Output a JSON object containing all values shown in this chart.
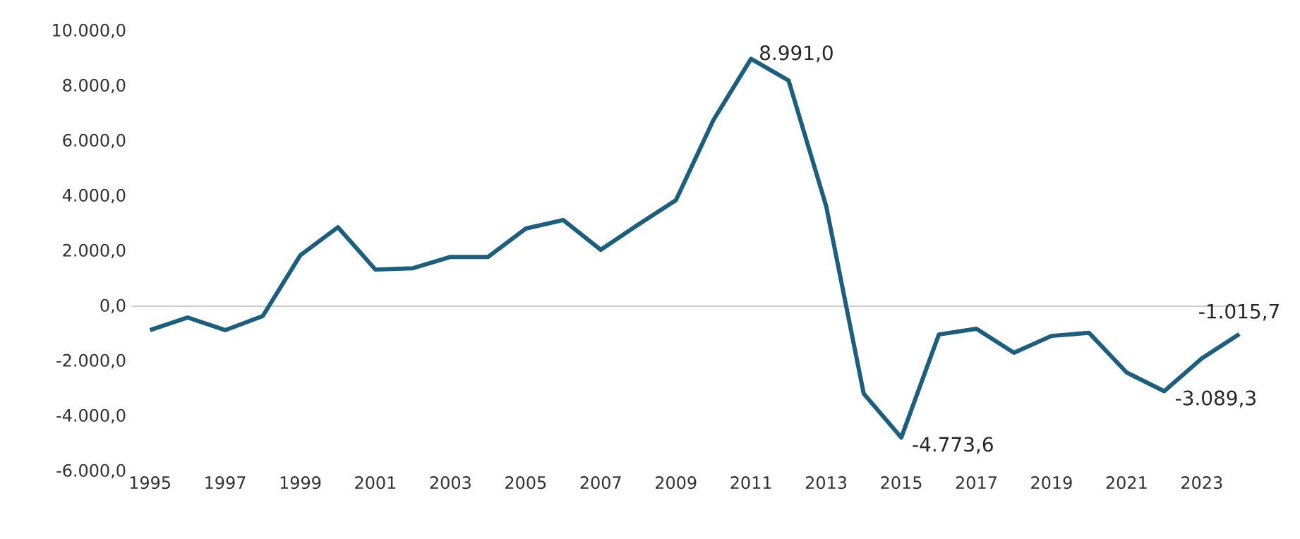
{
  "chart_data": {
    "type": "line",
    "x": [
      1995,
      1996,
      1997,
      1998,
      1999,
      2000,
      2001,
      2002,
      2003,
      2004,
      2005,
      2006,
      2007,
      2008,
      2009,
      2010,
      2011,
      2012,
      2013,
      2014,
      2015,
      2016,
      2017,
      2018,
      2019,
      2020,
      2021,
      2022,
      2023,
      2024
    ],
    "values": [
      -870,
      -410,
      -870,
      -360,
      1850,
      2870,
      1330,
      1380,
      1790,
      1790,
      2820,
      3130,
      2050,
      2970,
      3850,
      6770,
      8991.0,
      8200,
      3640,
      -3180,
      -4773.6,
      -1030,
      -820,
      -1690,
      -1080,
      -970,
      -2410,
      -3089.3,
      -1900,
      -1015.7
    ],
    "value_labels": [
      null,
      null,
      null,
      null,
      null,
      null,
      null,
      null,
      null,
      null,
      null,
      null,
      null,
      null,
      null,
      null,
      "8.991,0",
      null,
      null,
      null,
      "-4.773,6",
      null,
      null,
      null,
      null,
      null,
      null,
      "-3.089,3",
      null,
      "-1.015,7"
    ],
    "color": "#1b5e7e",
    "line_style": "solid",
    "marker": "none",
    "xlim": [
      1994.5,
      2024
    ],
    "xticks": [
      1995,
      1997,
      1999,
      2001,
      2003,
      2005,
      2007,
      2009,
      2011,
      2013,
      2015,
      2017,
      2019,
      2021,
      2023
    ],
    "ylim": [
      -6000,
      10000
    ],
    "yticks": [
      {
        "value": -6000,
        "label": "-6.000,0"
      },
      {
        "value": -4000,
        "label": "-4.000,0"
      },
      {
        "value": -2000,
        "label": "-2.000,0"
      },
      {
        "value": 0,
        "label": "0,0"
      },
      {
        "value": 2000,
        "label": "2.000,0"
      },
      {
        "value": 4000,
        "label": "4.000,0"
      },
      {
        "value": 6000,
        "label": "6.000,0"
      },
      {
        "value": 8000,
        "label": "8.000,0"
      },
      {
        "value": 10000,
        "label": "10.000,0"
      }
    ],
    "ref_lines": [
      {
        "axis": "y",
        "value": 0,
        "color": "#bfbfbf"
      }
    ]
  }
}
